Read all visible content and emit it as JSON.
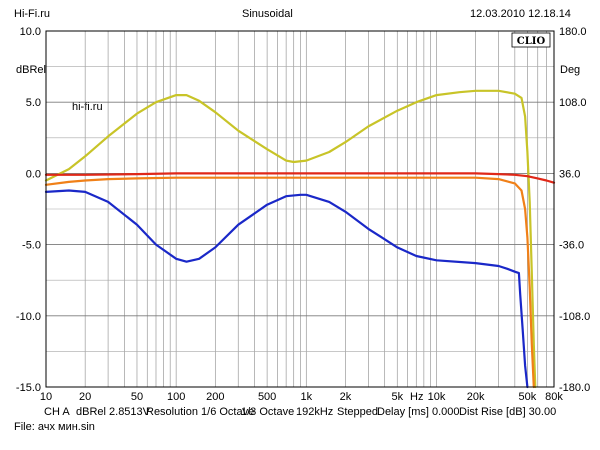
{
  "header": {
    "left": "Hi-Fi.ru",
    "center": "Sinusoidal",
    "right": "12.03.2010 12.18.14"
  },
  "brand": {
    "label": "CLIO"
  },
  "watermark": {
    "text": "hi-fi.ru"
  },
  "footer": {
    "channel": "CH A",
    "level": "dBRel 2.8513V",
    "resolution": "Resolution 1/6 Octave",
    "octave": "1/3 Octave",
    "rate": "192kHz",
    "mode": "Stepped",
    "delay": "Delay [ms] 0.000",
    "dist_rise": "Dist Rise [dB] 30.00",
    "file": "File: ачх мин.sin"
  },
  "chart_data": {
    "type": "line",
    "title": "Sinusoidal",
    "xscale": "log",
    "xlim": [
      10,
      80000
    ],
    "ylim": [
      -15,
      10
    ],
    "y2lim": [
      -180,
      180
    ],
    "ylabel": "dBRel",
    "y2label": "Deg",
    "xlabel": "Hz",
    "grid": true,
    "x_ticks": [
      {
        "v": 10,
        "label": "10"
      },
      {
        "v": 20,
        "label": "20"
      },
      {
        "v": 50,
        "label": "50"
      },
      {
        "v": 100,
        "label": "100"
      },
      {
        "v": 200,
        "label": "200"
      },
      {
        "v": 500,
        "label": "500"
      },
      {
        "v": 1000,
        "label": "1k"
      },
      {
        "v": 2000,
        "label": "2k"
      },
      {
        "v": 5000,
        "label": "5k"
      },
      {
        "v": 10000,
        "label": "10k"
      },
      {
        "v": 20000,
        "label": "20k"
      },
      {
        "v": 50000,
        "label": "50k"
      },
      {
        "v": 80000,
        "label": "80k"
      }
    ],
    "y_ticks": [
      {
        "v": 10,
        "label": "10.0"
      },
      {
        "v": 5,
        "label": "5.0"
      },
      {
        "v": 0,
        "label": "0.0"
      },
      {
        "v": -5,
        "label": "-5.0"
      },
      {
        "v": -10,
        "label": "-10.0"
      },
      {
        "v": -15,
        "label": "-15.0"
      }
    ],
    "y2_ticks": [
      {
        "v": 180,
        "label": "180.0"
      },
      {
        "v": 108,
        "label": "108.0"
      },
      {
        "v": 36,
        "label": "36.0"
      },
      {
        "v": -36,
        "label": "-36.0"
      },
      {
        "v": -108,
        "label": "-108.0"
      },
      {
        "v": -180,
        "label": "-180.0"
      }
    ],
    "series": [
      {
        "color": "#c8c428",
        "points": [
          [
            10,
            -0.5
          ],
          [
            15,
            0.3
          ],
          [
            20,
            1.2
          ],
          [
            30,
            2.6
          ],
          [
            50,
            4.2
          ],
          [
            70,
            5.0
          ],
          [
            100,
            5.5
          ],
          [
            120,
            5.5
          ],
          [
            150,
            5.1
          ],
          [
            200,
            4.3
          ],
          [
            300,
            3.0
          ],
          [
            500,
            1.7
          ],
          [
            700,
            0.9
          ],
          [
            800,
            0.8
          ],
          [
            1000,
            0.9
          ],
          [
            1500,
            1.5
          ],
          [
            2000,
            2.2
          ],
          [
            3000,
            3.3
          ],
          [
            5000,
            4.4
          ],
          [
            7000,
            5.0
          ],
          [
            10000,
            5.5
          ],
          [
            15000,
            5.7
          ],
          [
            20000,
            5.8
          ],
          [
            30000,
            5.8
          ],
          [
            40000,
            5.6
          ],
          [
            45000,
            5.3
          ],
          [
            48000,
            4.0
          ],
          [
            50000,
            1.5
          ],
          [
            52000,
            -2.0
          ],
          [
            54000,
            -7.0
          ],
          [
            56000,
            -12.0
          ],
          [
            57500,
            -15.0
          ]
        ]
      },
      {
        "color": "#e02818",
        "points": [
          [
            10,
            -0.1
          ],
          [
            20,
            -0.1
          ],
          [
            50,
            -0.05
          ],
          [
            100,
            0.0
          ],
          [
            300,
            0.0
          ],
          [
            1000,
            0.0
          ],
          [
            3000,
            0.0
          ],
          [
            10000,
            0.0
          ],
          [
            20000,
            0.0
          ],
          [
            30000,
            -0.05
          ],
          [
            40000,
            -0.1
          ],
          [
            50000,
            -0.2
          ],
          [
            60000,
            -0.35
          ],
          [
            70000,
            -0.5
          ],
          [
            80000,
            -0.65
          ]
        ]
      },
      {
        "color": "#f08018",
        "points": [
          [
            10,
            -0.8
          ],
          [
            15,
            -0.6
          ],
          [
            20,
            -0.5
          ],
          [
            30,
            -0.4
          ],
          [
            50,
            -0.35
          ],
          [
            100,
            -0.3
          ],
          [
            300,
            -0.3
          ],
          [
            1000,
            -0.3
          ],
          [
            3000,
            -0.3
          ],
          [
            10000,
            -0.3
          ],
          [
            20000,
            -0.3
          ],
          [
            30000,
            -0.4
          ],
          [
            40000,
            -0.7
          ],
          [
            45000,
            -1.2
          ],
          [
            48000,
            -2.5
          ],
          [
            50000,
            -4.5
          ],
          [
            52000,
            -8.0
          ],
          [
            54000,
            -12.0
          ],
          [
            56000,
            -15.0
          ]
        ]
      },
      {
        "color": "#1a28c8",
        "points": [
          [
            10,
            -1.3
          ],
          [
            15,
            -1.2
          ],
          [
            20,
            -1.3
          ],
          [
            30,
            -2.0
          ],
          [
            50,
            -3.6
          ],
          [
            70,
            -5.0
          ],
          [
            100,
            -6.0
          ],
          [
            120,
            -6.2
          ],
          [
            150,
            -6.0
          ],
          [
            200,
            -5.2
          ],
          [
            300,
            -3.6
          ],
          [
            500,
            -2.2
          ],
          [
            700,
            -1.6
          ],
          [
            900,
            -1.5
          ],
          [
            1000,
            -1.5
          ],
          [
            1500,
            -2.0
          ],
          [
            2000,
            -2.7
          ],
          [
            3000,
            -3.9
          ],
          [
            5000,
            -5.2
          ],
          [
            7000,
            -5.8
          ],
          [
            10000,
            -6.1
          ],
          [
            20000,
            -6.3
          ],
          [
            30000,
            -6.5
          ],
          [
            35000,
            -6.7
          ],
          [
            40000,
            -6.9
          ],
          [
            43000,
            -7.0
          ],
          [
            44000,
            -8.5
          ],
          [
            46000,
            -11.0
          ],
          [
            48000,
            -13.5
          ],
          [
            50000,
            -15.0
          ]
        ]
      }
    ]
  }
}
